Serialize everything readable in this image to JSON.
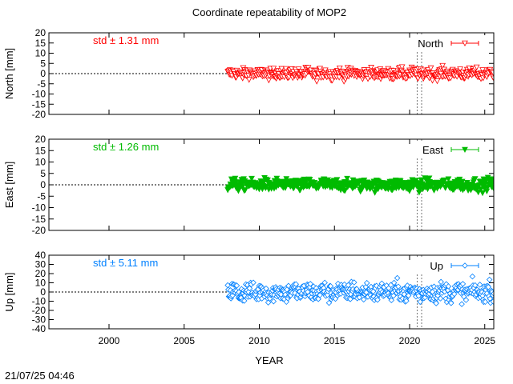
{
  "title": "Coordinate repeatability of MOP2",
  "footer": {
    "timestamp": "21/07/25 04:46"
  },
  "xaxis": {
    "label": "YEAR",
    "range": [
      1996,
      2025.6
    ],
    "ticks": [
      2000,
      2005,
      2010,
      2015,
      2020,
      2025
    ],
    "tick_labels": [
      "2000",
      "2005",
      "2010",
      "2015",
      "2020",
      "2025"
    ]
  },
  "chart_data": [
    {
      "type": "scatter",
      "component": "north",
      "series": [
        {
          "name": "North",
          "color": "#ff0000",
          "marker": "open-triangle-down",
          "start": 2007.9,
          "end": 2025.6,
          "std_mm": 1.31
        }
      ],
      "std_text": "std ± 1.31 mm",
      "ylabel": "North [mm]",
      "ylim": [
        -20,
        20
      ],
      "yticks": [
        -20,
        -15,
        -10,
        -5,
        0,
        5,
        10,
        15,
        20
      ],
      "ytick_labels": [
        "-20",
        "-15",
        "-10",
        "-5",
        "0",
        "5",
        "10",
        "15",
        "20"
      ],
      "zero_line": true,
      "event_lines": [
        2020.5,
        2020.8
      ],
      "legend": "top-right"
    },
    {
      "type": "scatter",
      "component": "east",
      "series": [
        {
          "name": "East",
          "color": "#00bb00",
          "marker": "filled-triangle-down",
          "start": 2007.9,
          "end": 2025.6,
          "std_mm": 1.26
        }
      ],
      "std_text": "std ± 1.26 mm",
      "ylabel": "East [mm]",
      "ylim": [
        -20,
        20
      ],
      "yticks": [
        -20,
        -15,
        -10,
        -5,
        0,
        5,
        10,
        15,
        20
      ],
      "ytick_labels": [
        "-20",
        "-15",
        "-10",
        "-5",
        "0",
        "5",
        "10",
        "15",
        "20"
      ],
      "zero_line": true,
      "event_lines": [
        2020.5,
        2020.8
      ],
      "legend": "top-right"
    },
    {
      "type": "scatter",
      "component": "up",
      "series": [
        {
          "name": "Up",
          "color": "#0080ff",
          "marker": "open-diamond",
          "start": 2007.9,
          "end": 2025.6,
          "std_mm": 5.11
        }
      ],
      "std_text": "std ± 5.11 mm",
      "ylabel": "Up [mm]",
      "ylim": [
        -40,
        40
      ],
      "yticks": [
        -40,
        -30,
        -20,
        -10,
        0,
        10,
        20,
        30,
        40
      ],
      "ytick_labels": [
        "-40",
        "-30",
        "-20",
        "-10",
        "0",
        "10",
        "20",
        "30",
        "40"
      ],
      "zero_line": true,
      "event_lines": [
        2020.5,
        2020.8
      ],
      "legend": "top-right"
    }
  ]
}
